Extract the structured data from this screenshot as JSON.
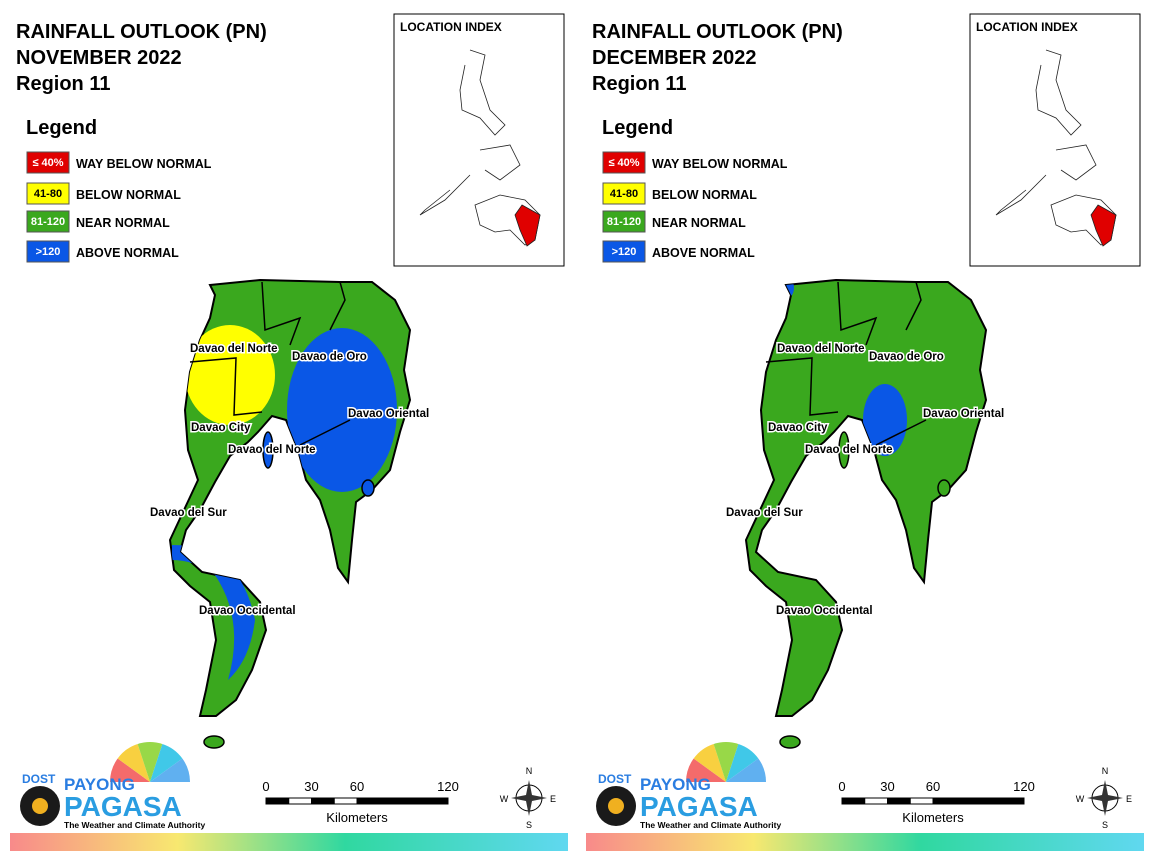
{
  "panels": [
    {
      "title": [
        "RAINFALL OUTLOOK (PN)",
        "NOVEMBER 2022",
        "Region 11"
      ],
      "legend_title": "Legend",
      "legend": [
        {
          "swatch": "≤ 40%",
          "label": "WAY BELOW NORMAL",
          "color": "#e00000"
        },
        {
          "swatch": "41-80",
          "label": "BELOW NORMAL",
          "color": "#ffff00"
        },
        {
          "swatch": "81-120",
          "label": "NEAR NORMAL",
          "color": "#3aa81e"
        },
        {
          "swatch": ">120",
          "label": "ABOVE NORMAL",
          "color": "#0a57e6"
        }
      ],
      "location_index": "LOCATION INDEX",
      "places": [
        "Davao del Norte",
        "Davao de Oro",
        "Davao Oriental",
        "Davao City",
        "Davao del Norte",
        "Davao del Sur",
        "Davao Occidental"
      ],
      "scale": {
        "ticks": [
          0,
          30,
          60,
          120
        ],
        "unit": "Kilometers"
      },
      "compass": [
        "N",
        "E",
        "S",
        "W"
      ],
      "logo": {
        "agency": "DOST",
        "brand": "PAYONG",
        "name": "PAGASA",
        "tagline": "The Weather and Climate Authority"
      }
    },
    {
      "title": [
        "RAINFALL OUTLOOK (PN)",
        "DECEMBER 2022",
        "Region 11"
      ],
      "legend_title": "Legend",
      "legend": [
        {
          "swatch": "≤ 40%",
          "label": "WAY BELOW NORMAL",
          "color": "#e00000"
        },
        {
          "swatch": "41-80",
          "label": "BELOW NORMAL",
          "color": "#ffff00"
        },
        {
          "swatch": "81-120",
          "label": "NEAR NORMAL",
          "color": "#3aa81e"
        },
        {
          "swatch": ">120",
          "label": "ABOVE NORMAL",
          "color": "#0a57e6"
        }
      ],
      "location_index": "LOCATION INDEX",
      "places": [
        "Davao del Norte",
        "Davao de Oro",
        "Davao Oriental",
        "Davao City",
        "Davao del Norte",
        "Davao del Sur",
        "Davao Occidental"
      ],
      "scale": {
        "ticks": [
          0,
          30,
          60,
          120
        ],
        "unit": "Kilometers"
      },
      "compass": [
        "N",
        "E",
        "S",
        "W"
      ],
      "logo": {
        "agency": "DOST",
        "brand": "PAYONG",
        "name": "PAGASA",
        "tagline": "The Weather and Climate Authority"
      }
    }
  ]
}
